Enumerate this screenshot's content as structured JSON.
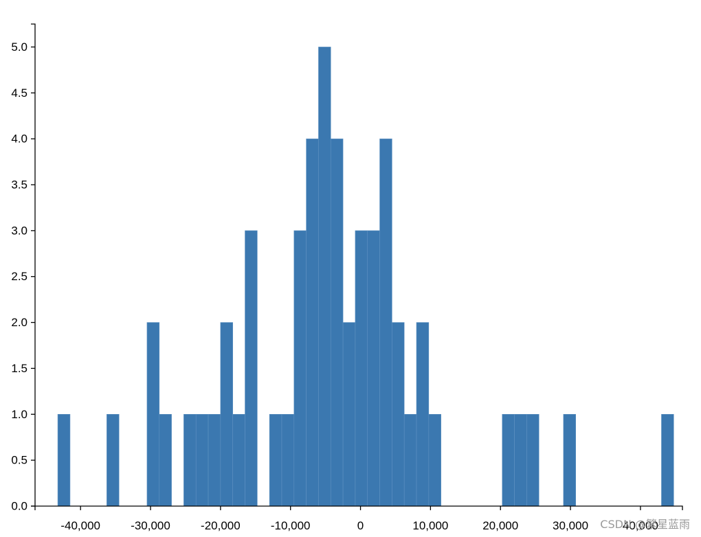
{
  "chart_data": {
    "type": "bar",
    "title": "",
    "xlabel": "",
    "ylabel": "",
    "xlim": [
      -46500,
      46000
    ],
    "ylim": [
      0,
      5.25
    ],
    "bin_width": 1750,
    "bins": [
      {
        "x0": -43250,
        "x1": -41500,
        "value": 1
      },
      {
        "x0": -36250,
        "x1": -34500,
        "value": 1
      },
      {
        "x0": -30500,
        "x1": -28750,
        "value": 2
      },
      {
        "x0": -28750,
        "x1": -27000,
        "value": 1
      },
      {
        "x0": -25250,
        "x1": -23500,
        "value": 1
      },
      {
        "x0": -23500,
        "x1": -21750,
        "value": 1
      },
      {
        "x0": -21750,
        "x1": -20000,
        "value": 1
      },
      {
        "x0": -20000,
        "x1": -18250,
        "value": 2
      },
      {
        "x0": -18250,
        "x1": -16500,
        "value": 1
      },
      {
        "x0": -16500,
        "x1": -14750,
        "value": 3
      },
      {
        "x0": -13000,
        "x1": -11250,
        "value": 1
      },
      {
        "x0": -11250,
        "x1": -9500,
        "value": 1
      },
      {
        "x0": -9500,
        "x1": -7750,
        "value": 3
      },
      {
        "x0": -7750,
        "x1": -6000,
        "value": 4
      },
      {
        "x0": -6000,
        "x1": -4250,
        "value": 5
      },
      {
        "x0": -4250,
        "x1": -2500,
        "value": 4
      },
      {
        "x0": -2500,
        "x1": -750,
        "value": 2
      },
      {
        "x0": -750,
        "x1": 1000,
        "value": 3
      },
      {
        "x0": 1000,
        "x1": 2750,
        "value": 3
      },
      {
        "x0": 2750,
        "x1": 4500,
        "value": 4
      },
      {
        "x0": 4500,
        "x1": 6250,
        "value": 2
      },
      {
        "x0": 6250,
        "x1": 8000,
        "value": 1
      },
      {
        "x0": 8000,
        "x1": 9750,
        "value": 2
      },
      {
        "x0": 9750,
        "x1": 11500,
        "value": 1
      },
      {
        "x0": 20250,
        "x1": 22000,
        "value": 1
      },
      {
        "x0": 22000,
        "x1": 23750,
        "value": 1
      },
      {
        "x0": 23750,
        "x1": 25500,
        "value": 1
      },
      {
        "x0": 29000,
        "x1": 30750,
        "value": 1
      },
      {
        "x0": 43000,
        "x1": 44750,
        "value": 1
      }
    ],
    "x_ticks": [
      {
        "value": -40000,
        "label": "-40,000"
      },
      {
        "value": -30000,
        "label": "-30,000"
      },
      {
        "value": -20000,
        "label": "-20,000"
      },
      {
        "value": -10000,
        "label": "-10,000"
      },
      {
        "value": 0,
        "label": "0"
      },
      {
        "value": 10000,
        "label": "10,000"
      },
      {
        "value": 20000,
        "label": "20,000"
      },
      {
        "value": 30000,
        "label": "30,000"
      },
      {
        "value": 40000,
        "label": "40,000"
      }
    ],
    "y_ticks": [
      {
        "value": 0,
        "label": "0.0"
      },
      {
        "value": 0.5,
        "label": "0.5"
      },
      {
        "value": 1,
        "label": "1.0"
      },
      {
        "value": 1.5,
        "label": "1.5"
      },
      {
        "value": 2,
        "label": "2.0"
      },
      {
        "value": 2.5,
        "label": "2.5"
      },
      {
        "value": 3,
        "label": "3.0"
      },
      {
        "value": 3.5,
        "label": "3.5"
      },
      {
        "value": 4,
        "label": "4.0"
      },
      {
        "value": 4.5,
        "label": "4.5"
      },
      {
        "value": 5,
        "label": "5.0"
      }
    ],
    "grid": false,
    "legend": "none",
    "bar_color": "#3b78b0",
    "bar_stroke_color": "#5f92c2",
    "axis_color": "#000000"
  },
  "watermark": {
    "text": "CSDN @繁星蓝雨",
    "color": "#9a9a9a"
  }
}
